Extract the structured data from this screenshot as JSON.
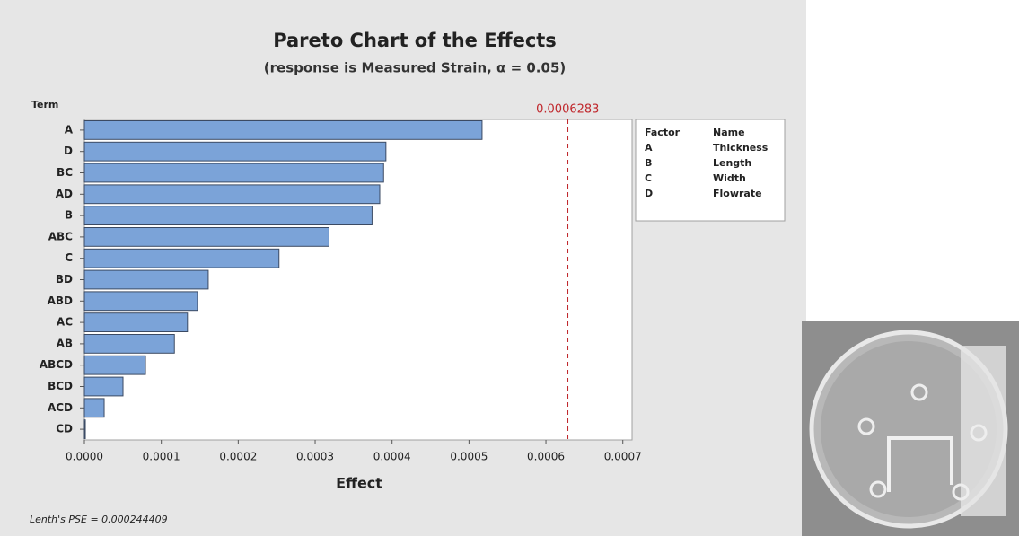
{
  "chart_data": {
    "type": "bar",
    "orientation": "horizontal",
    "title": "Pareto Chart of the Effects",
    "subtitle": "(response is Measured Strain, α = 0.05)",
    "y_label": "Term",
    "x_label": "Effect",
    "categories": [
      "A",
      "D",
      "BC",
      "AD",
      "B",
      "ABC",
      "C",
      "BD",
      "ABD",
      "AC",
      "AB",
      "ABCD",
      "BCD",
      "ACD",
      "CD"
    ],
    "values": [
      0.000517,
      0.000392,
      0.000389,
      0.000384,
      0.000374,
      0.000318,
      0.000253,
      0.000161,
      0.000147,
      0.000134,
      0.000117,
      7.94e-05,
      5.02e-05,
      2.57e-05,
      1.2e-06
    ],
    "color": "#7ba3d8",
    "xlim": [
      0,
      0.000712
    ],
    "xticks": [
      {
        "value": 0,
        "label": "0.0000"
      },
      {
        "value": 0.0001,
        "label": "0.0001"
      },
      {
        "value": 0.0002,
        "label": "0.0002"
      },
      {
        "value": 0.0003,
        "label": "0.0003"
      },
      {
        "value": 0.0004,
        "label": "0.0004"
      },
      {
        "value": 0.0005,
        "label": "0.0005"
      },
      {
        "value": 0.0006,
        "label": "0.0006"
      },
      {
        "value": 0.0007,
        "label": "0.0007"
      }
    ],
    "reference_line": {
      "value": 0.0006283,
      "color": "#c0282d"
    },
    "factor_table": {
      "headers": [
        "Factor",
        "Name"
      ],
      "rows": [
        [
          "A",
          "Thickness"
        ],
        [
          "B",
          "Length"
        ],
        [
          "C",
          "Width"
        ],
        [
          "D",
          "Flowrate"
        ]
      ]
    },
    "footnote": "Lenth's PSE = 0.000244409"
  }
}
